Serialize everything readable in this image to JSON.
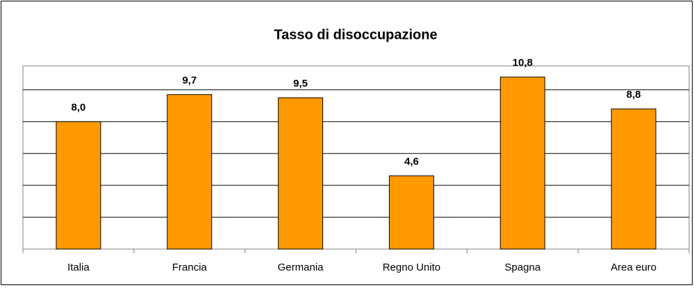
{
  "chart_data": {
    "type": "bar",
    "title": "Tasso di disoccupazione",
    "categories": [
      "Italia",
      "Francia",
      "Germania",
      "Regno Unito",
      "Spagna",
      "Area euro"
    ],
    "values": [
      8.0,
      9.7,
      9.5,
      4.6,
      10.8,
      8.8
    ],
    "value_labels": [
      "8,0",
      "9,7",
      "9,5",
      "4,6",
      "10,8",
      "8,8"
    ],
    "color": "#ff9900",
    "ylim": [
      0,
      11.5
    ],
    "yticks": [
      0,
      2,
      4,
      6,
      8,
      10
    ],
    "grid": true
  }
}
